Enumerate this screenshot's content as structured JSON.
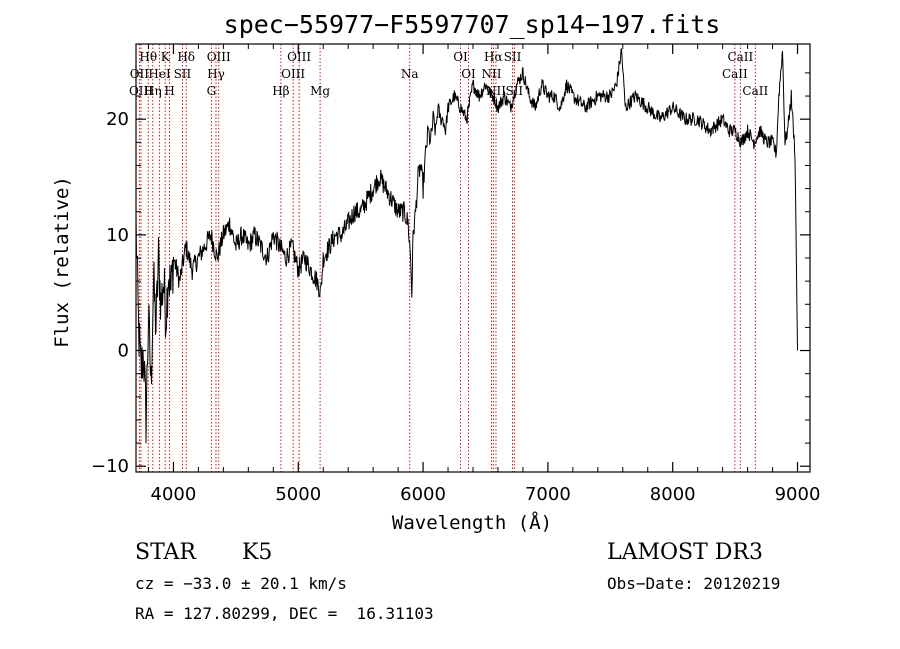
{
  "chart_data": {
    "type": "line",
    "title": "spec−55977−F5597707_sp14−197.fits",
    "xlabel": "Wavelength (Å)",
    "ylabel": "Flux (relative)",
    "xlim": [
      3700,
      9100
    ],
    "ylim": [
      -10.5,
      26.5
    ],
    "x_ticks": [
      {
        "value": 4000,
        "label": "4000"
      },
      {
        "value": 5000,
        "label": "5000"
      },
      {
        "value": 6000,
        "label": "6000"
      },
      {
        "value": 7000,
        "label": "7000"
      },
      {
        "value": 8000,
        "label": "8000"
      },
      {
        "value": 9000,
        "label": "9000"
      }
    ],
    "y_ticks": [
      {
        "value": -10,
        "label": "−10"
      },
      {
        "value": 0,
        "label": "0"
      },
      {
        "value": 10,
        "label": "10"
      },
      {
        "value": 20,
        "label": "20"
      }
    ],
    "series": [
      {
        "name": "spectrum",
        "x": [
          3700,
          3720,
          3740,
          3760,
          3780,
          3800,
          3820,
          3840,
          3860,
          3880,
          3900,
          3920,
          3940,
          3960,
          3980,
          4000,
          4050,
          4100,
          4150,
          4200,
          4250,
          4300,
          4350,
          4400,
          4450,
          4500,
          4550,
          4600,
          4650,
          4700,
          4750,
          4800,
          4850,
          4900,
          4950,
          5000,
          5050,
          5100,
          5150,
          5180,
          5200,
          5250,
          5300,
          5350,
          5400,
          5450,
          5500,
          5550,
          5600,
          5650,
          5700,
          5750,
          5800,
          5850,
          5880,
          5900,
          5910,
          5920,
          5940,
          5960,
          5980,
          6000,
          6020,
          6040,
          6060,
          6080,
          6100,
          6120,
          6140,
          6160,
          6180,
          6200,
          6250,
          6300,
          6350,
          6400,
          6450,
          6500,
          6550,
          6563,
          6600,
          6650,
          6700,
          6750,
          6800,
          6850,
          6900,
          6950,
          7000,
          7050,
          7100,
          7150,
          7200,
          7300,
          7400,
          7500,
          7550,
          7590,
          7620,
          7700,
          7800,
          7900,
          8000,
          8100,
          8200,
          8300,
          8400,
          8450,
          8500,
          8550,
          8600,
          8650,
          8700,
          8750,
          8800,
          8830,
          8850,
          8880,
          8900,
          8920,
          8950,
          8980,
          9000
        ],
        "y": [
          11,
          2,
          -2,
          0,
          -6,
          3,
          -3,
          6,
          2,
          8,
          4,
          6,
          3,
          7,
          5,
          8,
          6,
          9,
          7,
          8,
          9,
          10,
          8,
          10,
          11,
          9,
          10,
          9,
          10,
          9,
          8,
          10,
          9,
          8,
          9,
          7,
          8,
          7,
          6,
          5,
          8,
          9,
          10,
          10,
          11,
          12,
          12,
          13,
          14,
          15,
          14,
          13,
          12,
          12,
          11,
          8,
          5,
          10,
          12,
          15,
          16,
          14,
          17,
          19,
          18,
          20,
          19,
          21,
          20,
          20,
          19,
          21,
          22,
          21,
          20,
          23,
          22,
          23,
          22,
          22,
          21,
          22,
          21,
          23,
          24,
          22,
          21,
          23,
          22,
          22,
          21,
          23,
          22,
          21,
          22,
          22,
          23,
          26,
          21,
          22,
          21,
          20,
          21,
          20,
          20,
          19,
          20,
          19,
          19,
          18,
          19,
          18,
          19,
          18,
          18,
          17,
          22,
          26,
          18,
          19,
          22,
          17,
          0
        ]
      }
    ],
    "spectral_lines": [
      {
        "label": "Hθ",
        "wavelength": 3798,
        "row": 1
      },
      {
        "label": "OII",
        "wavelength": 3727,
        "row": 2
      },
      {
        "label": "OIII",
        "wavelength": 3740,
        "row": 3
      },
      {
        "label": "Hη",
        "wavelength": 3835,
        "row": 3
      },
      {
        "label": "K",
        "wavelength": 3934,
        "row": 1
      },
      {
        "label": "HeI",
        "wavelength": 3889,
        "row": 2
      },
      {
        "label": "H",
        "wavelength": 3969,
        "row": 3
      },
      {
        "label": "Hδ",
        "wavelength": 4102,
        "row": 1
      },
      {
        "label": "SII",
        "wavelength": 4072,
        "row": 2
      },
      {
        "label": "OIII",
        "wavelength": 4363,
        "row": 1
      },
      {
        "label": "Hγ",
        "wavelength": 4341,
        "row": 2
      },
      {
        "label": "G",
        "wavelength": 4304,
        "row": 3
      },
      {
        "label": "OIII",
        "wavelength": 5007,
        "row": 1
      },
      {
        "label": "OIII",
        "wavelength": 4959,
        "row": 2
      },
      {
        "label": "Hβ",
        "wavelength": 4861,
        "row": 3
      },
      {
        "label": "Mg",
        "wavelength": 5175,
        "row": 3
      },
      {
        "label": "Na",
        "wavelength": 5893,
        "row": 2
      },
      {
        "label": "OI",
        "wavelength": 6300,
        "row": 1
      },
      {
        "label": "OI",
        "wavelength": 6364,
        "row": 2
      },
      {
        "label": "Hα",
        "wavelength": 6563,
        "row": 1
      },
      {
        "label": "NII",
        "wavelength": 6548,
        "row": 2
      },
      {
        "label": "NII",
        "wavelength": 6584,
        "row": 3
      },
      {
        "label": "SII",
        "wavelength": 6717,
        "row": 1
      },
      {
        "label": "SII",
        "wavelength": 6731,
        "row": 3
      },
      {
        "label": "CaII",
        "wavelength": 8542,
        "row": 1
      },
      {
        "label": "CaII",
        "wavelength": 8498,
        "row": 2
      },
      {
        "label": "CaII",
        "wavelength": 8662,
        "row": 3
      }
    ]
  },
  "info": {
    "object_class": "STAR",
    "subclass": "K5",
    "survey": "LAMOST DR3",
    "cz": "cz = −33.0 ± 20.1 km/s",
    "obs_date": "Obs−Date: 20120219",
    "coords": "RA = 127.80299, DEC =  16.31103"
  },
  "colors": {
    "spectrum": "#000000",
    "line_marker": "#c00000",
    "axis": "#000000"
  }
}
